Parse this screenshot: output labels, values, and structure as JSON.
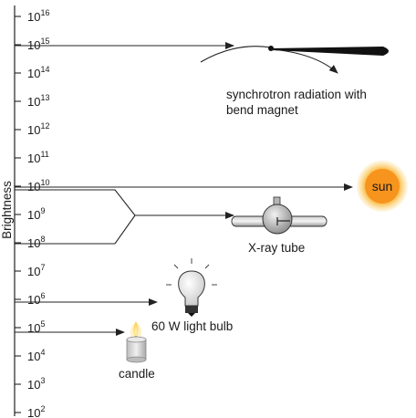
{
  "axis": {
    "label": "Brightness",
    "base": "10",
    "exponents": [
      "16",
      "15",
      "14",
      "13",
      "12",
      "11",
      "10",
      "9",
      "8",
      "7",
      "6",
      "5",
      "4",
      "3",
      "2"
    ]
  },
  "labels": {
    "synchrotron_line1": "synchrotron radiation with",
    "synchrotron_line2": "bend magnet",
    "sun": "sun",
    "xray_tube": "X-ray tube",
    "light_bulb": "60 W light bulb",
    "candle": "candle"
  },
  "colors": {
    "sun_core": "#f7941d",
    "sun_glow": "#fde9b0",
    "line": "#222222"
  },
  "icons": [
    "synchrotron-beam-icon",
    "sun-icon",
    "xray-tube-icon",
    "light-bulb-icon",
    "candle-icon"
  ]
}
